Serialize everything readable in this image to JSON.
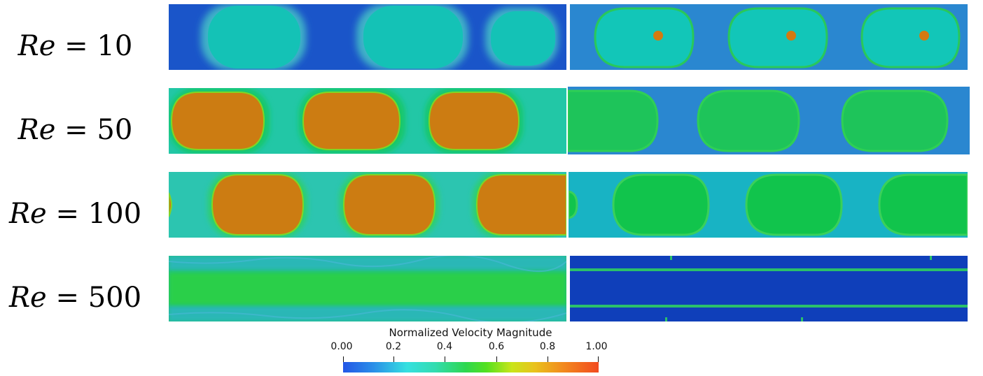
{
  "rows": [
    {
      "label_prefix": "Re",
      "label_eq": " = ",
      "label_value": "10"
    },
    {
      "label_prefix": "Re",
      "label_eq": " = ",
      "label_value": "50"
    },
    {
      "label_prefix": "Re",
      "label_eq": " = ",
      "label_value": "100"
    },
    {
      "label_prefix": "Re",
      "label_eq": " = ",
      "label_value": "500"
    }
  ],
  "colorbar": {
    "title": "Normalized Velocity Magnitude",
    "ticks": [
      "0.00",
      "0.2",
      "0.4",
      "0.6",
      "0.8",
      "1.00"
    ]
  },
  "colors": {
    "deep_blue": "#1a55c9",
    "mid_blue": "#2a87d0",
    "cyan": "#11c3b6",
    "green": "#17c84d",
    "orange": "#cf7c14",
    "navy": "#0f3fba"
  }
}
